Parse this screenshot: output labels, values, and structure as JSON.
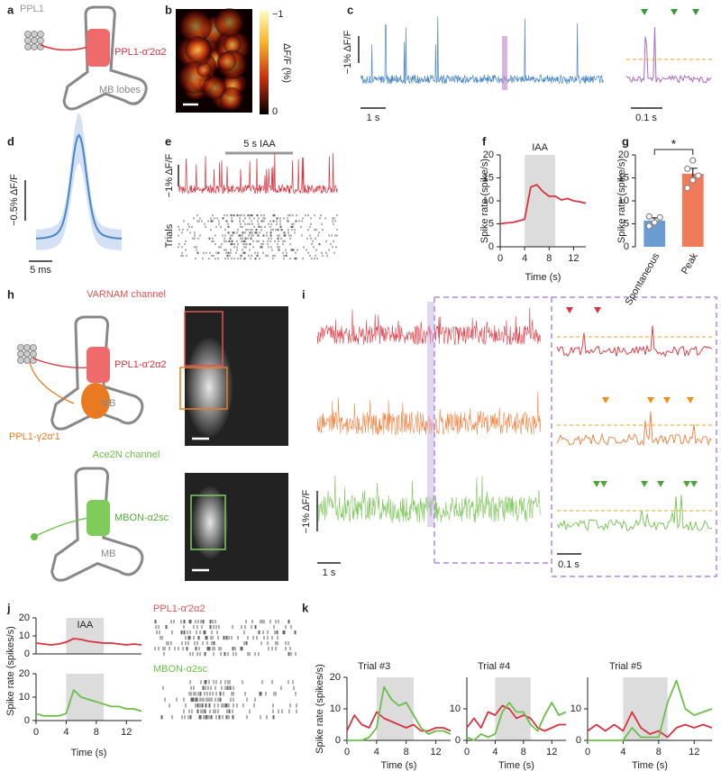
{
  "figure": {
    "panels": [
      "a",
      "b",
      "c",
      "d",
      "e",
      "f",
      "g",
      "h",
      "i",
      "j",
      "k"
    ],
    "a": {
      "cells": "PPL1",
      "neuron": "PPL1-α′2α2",
      "lobes": "MB lobes"
    },
    "b": {
      "cbar_top": "−1",
      "cbar_bottom": "0",
      "cbar_label": "ΔF/F (%)"
    },
    "c": {
      "scale_y": "−1% ΔF/F",
      "scale_x": "1 s",
      "zoom_scale_x": "0.1 s"
    },
    "d": {
      "scale_y": "−0.5% ΔF/F",
      "scale_x": "5 ms"
    },
    "e": {
      "stimulus": "5 s IAA",
      "scale_y": "−1% ΔF/F",
      "raster_label": "Trials"
    },
    "h": {
      "top_channel": "VARNAM channel",
      "top_neuron1": "PPL1-α′2α2",
      "top_mb": "MB",
      "top_neuron2": "PPL1-γ2α′1",
      "bottom_channel": "Ace2N channel",
      "bottom_neuron": "MBON-α2sc",
      "bottom_mb": "MB"
    },
    "i": {
      "scale_y": "−1% ΔF/F",
      "scale_x": "1 s",
      "zoom_scale_x": "0.1 s"
    }
  },
  "chart_data": [
    {
      "type": "line",
      "ylabel": "Spike rate (spike/s)",
      "xlabel": "Time (s)",
      "x": [
        0,
        1,
        2,
        3,
        4,
        5,
        6,
        7,
        8,
        9,
        10,
        11,
        12,
        13,
        14
      ],
      "series": [
        {
          "color": "#d9333f",
          "values": [
            5,
            5.2,
            5.3,
            5.6,
            6,
            13,
            13.5,
            12,
            11,
            11,
            10.2,
            10.5,
            10,
            9.8,
            9.5
          ]
        }
      ],
      "shade": {
        "label": "IAA",
        "range": [
          4,
          9
        ]
      },
      "xlim": [
        0,
        14
      ],
      "ylim": [
        0,
        20
      ],
      "xticks": [
        0,
        4,
        8,
        12
      ],
      "yticks": [
        0,
        5,
        10,
        15,
        20
      ]
    },
    {
      "type": "bar",
      "ylabel": "Spike rate (spike/s)",
      "categories": [
        "Spontaneous",
        "Peak"
      ],
      "values": [
        5.7,
        15.9
      ],
      "errors": [
        0.6,
        1.2
      ],
      "colors": [
        "#6a9bd1",
        "#ef7b5b"
      ],
      "points": [
        [
          4.5,
          5.3,
          6.4,
          6.6
        ],
        [
          12.8,
          14.5,
          15.5,
          17,
          18.8
        ]
      ],
      "annotation": "*",
      "ylim": [
        0,
        20
      ],
      "yticks": [
        0,
        5,
        10,
        15,
        20
      ]
    },
    {
      "type": "line",
      "title": "PPL1-α′2α2",
      "ylabel": "Spike rate (spikes/s)",
      "x": [
        0,
        1,
        2,
        3,
        4,
        5,
        6,
        7,
        8,
        9,
        10,
        11,
        12,
        13,
        14
      ],
      "series": [
        {
          "color": "#d9333f",
          "values": [
            6,
            5.5,
            5,
            5.5,
            6.5,
            8.5,
            8,
            7,
            6.5,
            6,
            6,
            5.5,
            5,
            5.5,
            5
          ]
        }
      ],
      "shade": {
        "label": "IAA",
        "range": [
          4,
          9
        ]
      },
      "xlim": [
        0,
        14
      ],
      "ylim": [
        0,
        20
      ],
      "yticks": [
        0,
        10,
        20
      ]
    },
    {
      "type": "line",
      "title": "MBON-α2sc",
      "xlabel": "Time (s)",
      "x": [
        0,
        1,
        2,
        3,
        4,
        5,
        6,
        7,
        8,
        9,
        10,
        11,
        12,
        13,
        14
      ],
      "series": [
        {
          "color": "#6cbf4a",
          "values": [
            3,
            2,
            2,
            2,
            3,
            13,
            10,
            9,
            8,
            7,
            6,
            6,
            5,
            5,
            4
          ]
        }
      ],
      "shade": {
        "range": [
          4,
          9
        ]
      },
      "xlim": [
        0,
        14
      ],
      "ylim": [
        0,
        20
      ],
      "xticks": [
        0,
        4,
        8,
        12
      ],
      "yticks": [
        0,
        10,
        20
      ]
    },
    {
      "type": "line",
      "title": "Trial #3",
      "ylabel": "Spike rate (spikes/s)",
      "xlabel": "Time (s)",
      "x": [
        0,
        1,
        2,
        3,
        4,
        5,
        6,
        7,
        8,
        9,
        10,
        11,
        12,
        13,
        14
      ],
      "series": [
        {
          "color": "#d9333f",
          "values": [
            3,
            8,
            5,
            4,
            9,
            7,
            6,
            5,
            4,
            5,
            3,
            3,
            4,
            4,
            3
          ]
        },
        {
          "color": "#6cbf4a",
          "values": [
            0,
            0,
            0,
            1,
            4,
            17,
            13,
            11,
            12,
            8,
            4,
            2,
            3,
            3,
            2
          ]
        }
      ],
      "shade": {
        "range": [
          4,
          9
        ]
      },
      "xlim": [
        0,
        14
      ],
      "ylim": [
        0,
        20
      ],
      "xticks": [
        0,
        4,
        8,
        12
      ],
      "yticks": [
        0,
        10,
        20
      ]
    },
    {
      "type": "line",
      "title": "Trial #4",
      "xlabel": "Time (s)",
      "x": [
        0,
        1,
        2,
        3,
        4,
        5,
        6,
        7,
        8,
        9,
        10,
        11,
        12,
        13,
        14
      ],
      "series": [
        {
          "color": "#d9333f",
          "values": [
            4,
            7,
            4,
            9,
            8,
            11,
            10,
            7,
            8,
            7,
            4,
            3,
            4,
            5,
            5
          ]
        },
        {
          "color": "#6cbf4a",
          "values": [
            1,
            0,
            2,
            1,
            2,
            9,
            12,
            9,
            9,
            5,
            3,
            8,
            12,
            8,
            9
          ]
        }
      ],
      "shade": {
        "range": [
          4,
          9
        ]
      },
      "xlim": [
        0,
        14
      ],
      "ylim": [
        0,
        20
      ],
      "xticks": [
        0,
        4,
        8,
        12
      ],
      "yticks": [
        0,
        10
      ]
    },
    {
      "type": "line",
      "title": "Trial #5",
      "xlabel": "Time (s)",
      "x": [
        0,
        1,
        2,
        3,
        4,
        5,
        6,
        7,
        8,
        9,
        10,
        11,
        12,
        13,
        14
      ],
      "series": [
        {
          "color": "#d9333f",
          "values": [
            3,
            5,
            3,
            5,
            3,
            9,
            4,
            2,
            3,
            1,
            4,
            5,
            4,
            5,
            4
          ]
        },
        {
          "color": "#6cbf4a",
          "values": [
            0,
            0,
            0,
            0,
            0,
            4,
            1,
            1,
            1,
            12,
            19,
            10,
            8,
            9,
            10
          ]
        }
      ],
      "shade": {
        "range": [
          4,
          9
        ]
      },
      "xlim": [
        0,
        14
      ],
      "ylim": [
        0,
        20
      ],
      "xticks": [
        0,
        4,
        8,
        12
      ],
      "yticks": [
        0,
        10
      ]
    }
  ]
}
